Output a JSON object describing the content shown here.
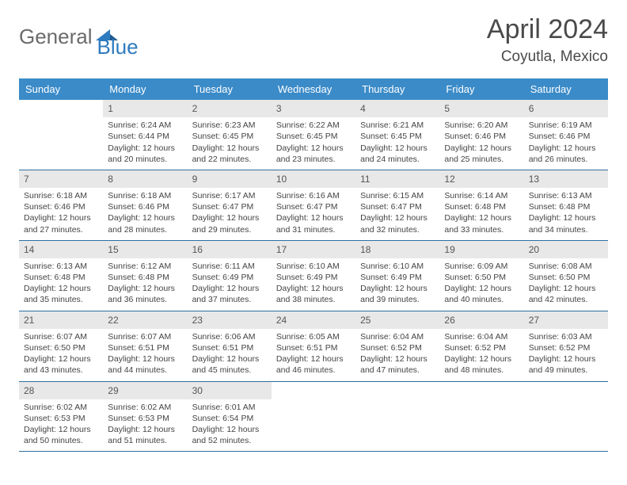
{
  "logo": {
    "text1": "General",
    "text2": "Blue"
  },
  "title": "April 2024",
  "location": "Coyutla, Mexico",
  "colors": {
    "header_bar": "#3b8bc8",
    "day_num_bg": "#e8e8e8",
    "week_border": "#2f6fa0",
    "logo_gray": "#6b6b6b",
    "logo_blue": "#2f7bbf"
  },
  "dow": [
    "Sunday",
    "Monday",
    "Tuesday",
    "Wednesday",
    "Thursday",
    "Friday",
    "Saturday"
  ],
  "weeks": [
    [
      {
        "n": "",
        "sr": "",
        "ss": "",
        "dl": ""
      },
      {
        "n": "1",
        "sr": "6:24 AM",
        "ss": "6:44 PM",
        "dl": "12 hours and 20 minutes."
      },
      {
        "n": "2",
        "sr": "6:23 AM",
        "ss": "6:45 PM",
        "dl": "12 hours and 22 minutes."
      },
      {
        "n": "3",
        "sr": "6:22 AM",
        "ss": "6:45 PM",
        "dl": "12 hours and 23 minutes."
      },
      {
        "n": "4",
        "sr": "6:21 AM",
        "ss": "6:45 PM",
        "dl": "12 hours and 24 minutes."
      },
      {
        "n": "5",
        "sr": "6:20 AM",
        "ss": "6:46 PM",
        "dl": "12 hours and 25 minutes."
      },
      {
        "n": "6",
        "sr": "6:19 AM",
        "ss": "6:46 PM",
        "dl": "12 hours and 26 minutes."
      }
    ],
    [
      {
        "n": "7",
        "sr": "6:18 AM",
        "ss": "6:46 PM",
        "dl": "12 hours and 27 minutes."
      },
      {
        "n": "8",
        "sr": "6:18 AM",
        "ss": "6:46 PM",
        "dl": "12 hours and 28 minutes."
      },
      {
        "n": "9",
        "sr": "6:17 AM",
        "ss": "6:47 PM",
        "dl": "12 hours and 29 minutes."
      },
      {
        "n": "10",
        "sr": "6:16 AM",
        "ss": "6:47 PM",
        "dl": "12 hours and 31 minutes."
      },
      {
        "n": "11",
        "sr": "6:15 AM",
        "ss": "6:47 PM",
        "dl": "12 hours and 32 minutes."
      },
      {
        "n": "12",
        "sr": "6:14 AM",
        "ss": "6:48 PM",
        "dl": "12 hours and 33 minutes."
      },
      {
        "n": "13",
        "sr": "6:13 AM",
        "ss": "6:48 PM",
        "dl": "12 hours and 34 minutes."
      }
    ],
    [
      {
        "n": "14",
        "sr": "6:13 AM",
        "ss": "6:48 PM",
        "dl": "12 hours and 35 minutes."
      },
      {
        "n": "15",
        "sr": "6:12 AM",
        "ss": "6:48 PM",
        "dl": "12 hours and 36 minutes."
      },
      {
        "n": "16",
        "sr": "6:11 AM",
        "ss": "6:49 PM",
        "dl": "12 hours and 37 minutes."
      },
      {
        "n": "17",
        "sr": "6:10 AM",
        "ss": "6:49 PM",
        "dl": "12 hours and 38 minutes."
      },
      {
        "n": "18",
        "sr": "6:10 AM",
        "ss": "6:49 PM",
        "dl": "12 hours and 39 minutes."
      },
      {
        "n": "19",
        "sr": "6:09 AM",
        "ss": "6:50 PM",
        "dl": "12 hours and 40 minutes."
      },
      {
        "n": "20",
        "sr": "6:08 AM",
        "ss": "6:50 PM",
        "dl": "12 hours and 42 minutes."
      }
    ],
    [
      {
        "n": "21",
        "sr": "6:07 AM",
        "ss": "6:50 PM",
        "dl": "12 hours and 43 minutes."
      },
      {
        "n": "22",
        "sr": "6:07 AM",
        "ss": "6:51 PM",
        "dl": "12 hours and 44 minutes."
      },
      {
        "n": "23",
        "sr": "6:06 AM",
        "ss": "6:51 PM",
        "dl": "12 hours and 45 minutes."
      },
      {
        "n": "24",
        "sr": "6:05 AM",
        "ss": "6:51 PM",
        "dl": "12 hours and 46 minutes."
      },
      {
        "n": "25",
        "sr": "6:04 AM",
        "ss": "6:52 PM",
        "dl": "12 hours and 47 minutes."
      },
      {
        "n": "26",
        "sr": "6:04 AM",
        "ss": "6:52 PM",
        "dl": "12 hours and 48 minutes."
      },
      {
        "n": "27",
        "sr": "6:03 AM",
        "ss": "6:52 PM",
        "dl": "12 hours and 49 minutes."
      }
    ],
    [
      {
        "n": "28",
        "sr": "6:02 AM",
        "ss": "6:53 PM",
        "dl": "12 hours and 50 minutes."
      },
      {
        "n": "29",
        "sr": "6:02 AM",
        "ss": "6:53 PM",
        "dl": "12 hours and 51 minutes."
      },
      {
        "n": "30",
        "sr": "6:01 AM",
        "ss": "6:54 PM",
        "dl": "12 hours and 52 minutes."
      },
      {
        "n": "",
        "sr": "",
        "ss": "",
        "dl": ""
      },
      {
        "n": "",
        "sr": "",
        "ss": "",
        "dl": ""
      },
      {
        "n": "",
        "sr": "",
        "ss": "",
        "dl": ""
      },
      {
        "n": "",
        "sr": "",
        "ss": "",
        "dl": ""
      }
    ]
  ],
  "labels": {
    "sunrise": "Sunrise: ",
    "sunset": "Sunset: ",
    "daylight": "Daylight: "
  }
}
